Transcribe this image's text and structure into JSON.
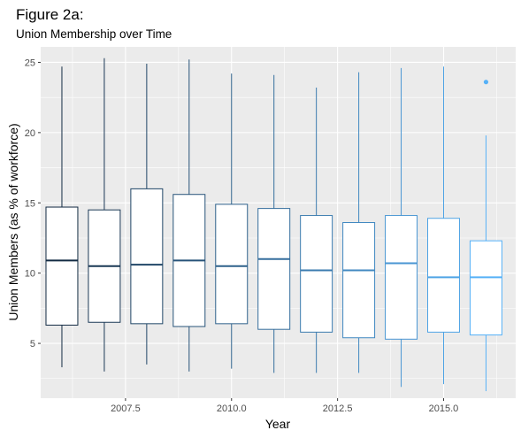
{
  "figure": {
    "title": "Figure 2a:",
    "subtitle": "Union Membership over Time"
  },
  "chart_data": {
    "type": "boxplot",
    "xlabel": "Year",
    "ylabel": "Union Members (as % of workforce)",
    "xlim": [
      2005.5,
      2016.7
    ],
    "ylim": [
      1.1,
      26.1
    ],
    "x_ticks": [
      {
        "value": 2007.5,
        "label": "2007.5"
      },
      {
        "value": 2010.0,
        "label": "2010.0"
      },
      {
        "value": 2012.5,
        "label": "2012.5"
      },
      {
        "value": 2015.0,
        "label": "2015.0"
      }
    ],
    "y_ticks": [
      {
        "value": 5,
        "label": "5"
      },
      {
        "value": 10,
        "label": "10"
      },
      {
        "value": 15,
        "label": "15"
      },
      {
        "value": 20,
        "label": "20"
      },
      {
        "value": 25,
        "label": "25"
      }
    ],
    "grid": true,
    "color_scale": {
      "low": "#132B43",
      "high": "#56B1F7"
    },
    "boxes": [
      {
        "x": 2006,
        "min": 3.3,
        "q1": 6.3,
        "median": 10.9,
        "q3": 14.7,
        "max": 24.7,
        "outliers": []
      },
      {
        "x": 2007,
        "min": 3.0,
        "q1": 6.5,
        "median": 10.5,
        "q3": 14.5,
        "max": 25.3,
        "outliers": []
      },
      {
        "x": 2008,
        "min": 3.5,
        "q1": 6.4,
        "median": 10.6,
        "q3": 16.0,
        "max": 24.9,
        "outliers": []
      },
      {
        "x": 2009,
        "min": 3.0,
        "q1": 6.2,
        "median": 10.9,
        "q3": 15.6,
        "max": 25.2,
        "outliers": []
      },
      {
        "x": 2010,
        "min": 3.2,
        "q1": 6.4,
        "median": 10.5,
        "q3": 14.9,
        "max": 24.2,
        "outliers": []
      },
      {
        "x": 2011,
        "min": 2.9,
        "q1": 6.0,
        "median": 11.0,
        "q3": 14.6,
        "max": 24.1,
        "outliers": []
      },
      {
        "x": 2012,
        "min": 2.9,
        "q1": 5.8,
        "median": 10.2,
        "q3": 14.1,
        "max": 23.2,
        "outliers": []
      },
      {
        "x": 2013,
        "min": 2.9,
        "q1": 5.4,
        "median": 10.2,
        "q3": 13.6,
        "max": 24.3,
        "outliers": []
      },
      {
        "x": 2014,
        "min": 1.9,
        "q1": 5.3,
        "median": 10.7,
        "q3": 14.1,
        "max": 24.6,
        "outliers": []
      },
      {
        "x": 2015,
        "min": 2.1,
        "q1": 5.8,
        "median": 9.7,
        "q3": 13.9,
        "max": 24.7,
        "outliers": []
      },
      {
        "x": 2016,
        "min": 1.6,
        "q1": 5.6,
        "median": 9.7,
        "q3": 12.3,
        "max": 19.8,
        "outliers": [
          23.6
        ]
      }
    ]
  }
}
